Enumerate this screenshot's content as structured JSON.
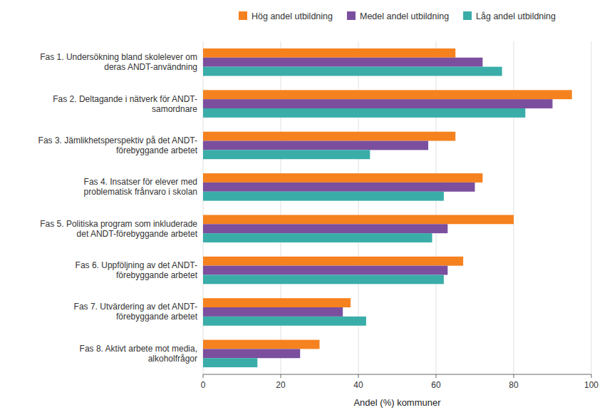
{
  "chart_data": {
    "type": "bar",
    "orientation": "horizontal",
    "categories": [
      "Fas 1. Undersökning bland skolelever om\nderas ANDT-användning",
      "Fas 2. Deltagande i nätverk för ANDT-\nsamordnare",
      "Fas 3. Jämlikhetsperspektiv på det ANDT-\nförebyggande arbetet",
      "Fas 4. Insatser för elever med\nproblematisk frånvaro i skolan",
      "Fas 5. Politiska program som inkluderade\ndet ANDT-förebyggande arbetet",
      "Fas 6. Uppföljning av det ANDT-\nförebyggande arbetet",
      "Fas 7. Utvärdering av det ANDT-\nförebyggande arbetet",
      "Fas 8. Aktivt arbete mot media,\nalkoholfrågor"
    ],
    "series": [
      {
        "name": "Hög andel utbildning",
        "color": "#F5821F",
        "values": [
          65,
          95,
          65,
          72,
          80,
          67,
          38,
          30
        ]
      },
      {
        "name": "Medel andel utbildning",
        "color": "#7B4F9E",
        "values": [
          72,
          90,
          58,
          70,
          63,
          63,
          36,
          25
        ]
      },
      {
        "name": "Låg andel utbildning",
        "color": "#3AADA8",
        "values": [
          77,
          83,
          43,
          62,
          59,
          62,
          42,
          14
        ]
      }
    ],
    "x_label": "Andel (%) kommuner",
    "xlim": [
      0,
      100
    ],
    "xticks": [
      0,
      20,
      40,
      60,
      80,
      100
    ],
    "grid": true,
    "legend": "top"
  }
}
